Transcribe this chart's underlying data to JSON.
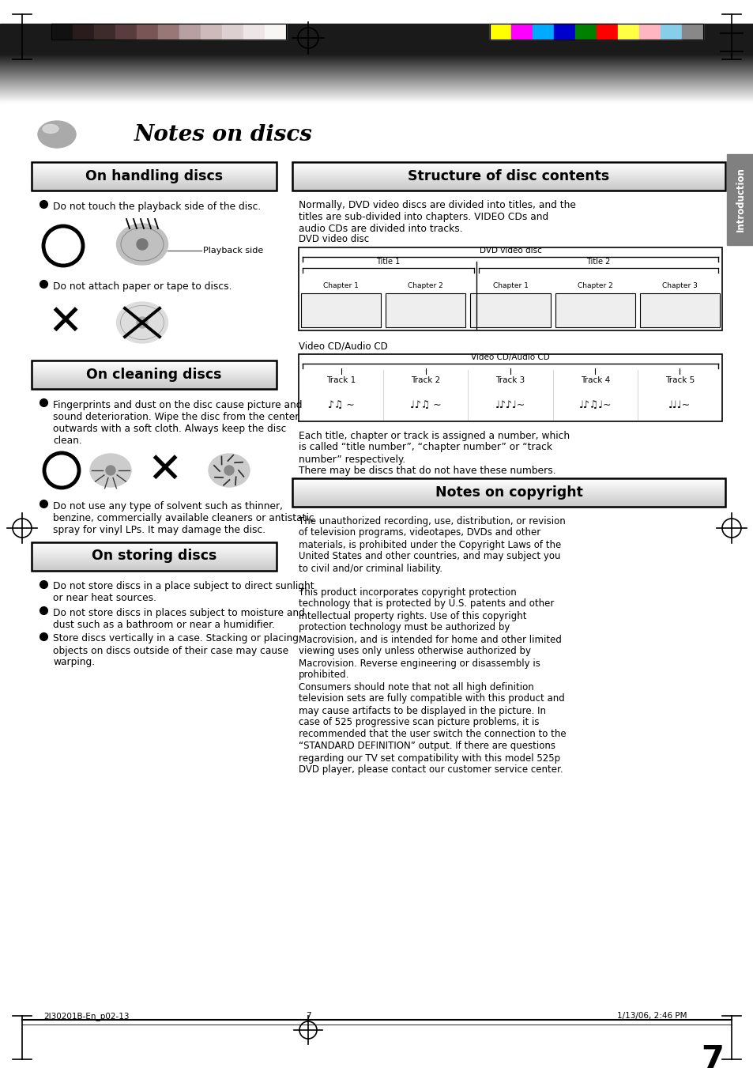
{
  "page_bg": "#ffffff",
  "title_main": "Notes on discs",
  "section_left_1_title": "On handling discs",
  "section_left_1_b1": "Do not touch the playback side of the disc.",
  "section_left_1_b2": "Do not attach paper or tape to discs.",
  "section_left_2_title": "On cleaning discs",
  "section_left_2_b1": "Fingerprints and dust on the disc cause picture and\nsound deterioration. Wipe the disc from the center\noutwards with a soft cloth. Always keep the disc\nclean.",
  "section_left_2_b2": "Do not use any type of solvent such as thinner,\nbenzine, commercially available cleaners or antistatic\nspray for vinyl LPs. It may damage the disc.",
  "section_left_3_title": "On storing discs",
  "section_left_3_b1": "Do not store discs in a place subject to direct sunlight\nor near heat sources.",
  "section_left_3_b2": "Do not store discs in places subject to moisture and\ndust such as a bathroom or near a humidifier.",
  "section_left_3_b3": "Store discs vertically in a case. Stacking or placing\nobjects on discs outside of their case may cause\nwarping.",
  "section_right_1_title": "Structure of disc contents",
  "section_right_1_body": "Normally, DVD video discs are divided into titles, and the\ntitles are sub-divided into chapters. VIDEO CDs and\naudio CDs are divided into tracks.",
  "dvd_disc_label": "DVD video disc",
  "dvd_outer_label": "DVD video disc",
  "title1_label": "Title 1",
  "title2_label": "Title 2",
  "chapters_t1": [
    "Chapter 1",
    "Chapter 2"
  ],
  "chapters_t2": [
    "Chapter 1",
    "Chapter 2",
    "Chapter 3"
  ],
  "vcd_disc_label": "Video CD/Audio CD",
  "vcd_outer_label": "Video CD/Audio CD",
  "tracks": [
    "Track 1",
    "Track 2",
    "Track 3",
    "Track 4",
    "Track 5"
  ],
  "each_title_text": "Each title, chapter or track is assigned a number, which\nis called “title number”, “chapter number” or “track\nnumber” respectively.\nThere may be discs that do not have these numbers.",
  "section_right_2_title": "Notes on copyright",
  "section_right_2_body": "The unauthorized recording, use, distribution, or revision\nof television programs, videotapes, DVDs and other\nmaterials, is prohibited under the Copyright Laws of the\nUnited States and other countries, and may subject you\nto civil and/or criminal liability.\n\nThis product incorporates copyright protection\ntechnology that is protected by U.S. patents and other\nintellectual property rights. Use of this copyright\nprotection technology must be authorized by\nMacrovision, and is intended for home and other limited\nviewing uses only unless otherwise authorized by\nMacrovision. Reverse engineering or disassembly is\nprohibited.\nConsumers should note that not all high definition\ntelevision sets are fully compatible with this product and\nmay cause artifacts to be displayed in the picture. In\ncase of 525 progressive scan picture problems, it is\nrecommended that the user switch the connection to the\n“STANDARD DEFINITION” output. If there are questions\nregarding our TV set compatibility with this model 525p\nDVD player, please contact our customer service center.",
  "side_tab_text": "Introduction",
  "footer_left": "2I30201B-En_p02-13",
  "footer_center": "7",
  "footer_right": "1/13/06, 2:46 PM",
  "page_number": "7",
  "color_bars_left": [
    "#111111",
    "#2a1c1c",
    "#3d2b2b",
    "#5a3c3c",
    "#7a5555",
    "#9a7777",
    "#b8a0a0",
    "#cebaba",
    "#ddd0d0",
    "#eee6e6",
    "#f8f5f5"
  ],
  "color_bars_right": [
    "#ffff00",
    "#ff00ff",
    "#00aaff",
    "#0000cc",
    "#008000",
    "#ff0000",
    "#ffff44",
    "#ffb6c1",
    "#87ceeb",
    "#888888"
  ],
  "playback_side_label": "Playback side"
}
